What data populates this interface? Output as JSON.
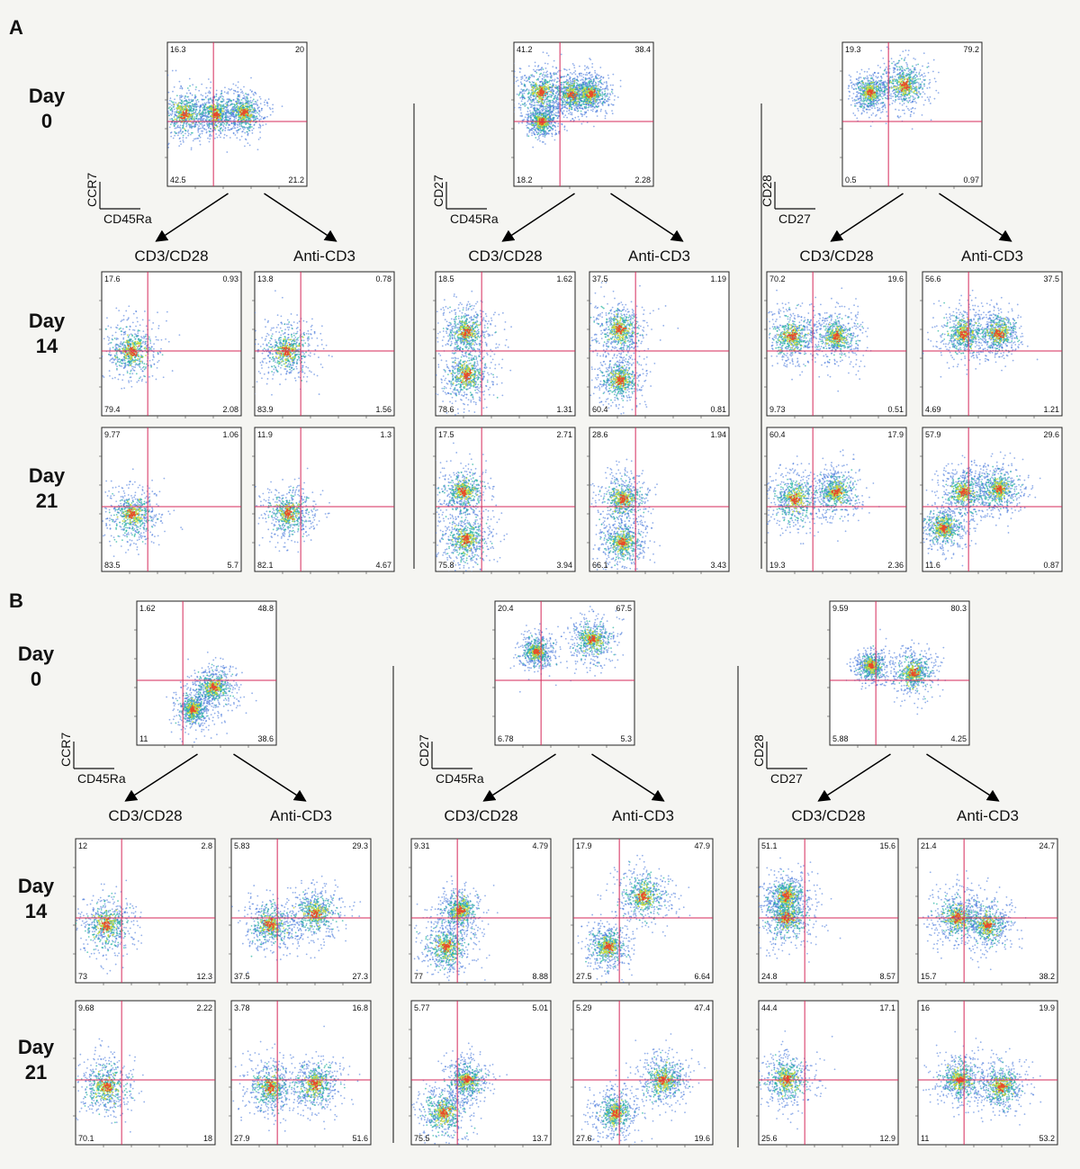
{
  "panels": [
    {
      "letter": "A",
      "day_labels": [
        [
          "Day",
          "0"
        ],
        [
          "Day",
          "14"
        ],
        [
          "Day",
          "21"
        ]
      ],
      "condition_labels": [
        "CD3/CD28",
        "Anti-CD3"
      ],
      "columns": [
        {
          "axes": {
            "y": "CCR7",
            "x": "CD45Ra"
          },
          "day0": {
            "q": [
              "16.3",
              "20",
              "42.5",
              "21.2"
            ],
            "pops": [
              [
                0.12,
                0.5,
                0.28
              ],
              [
                0.35,
                0.5,
                0.24
              ],
              [
                0.55,
                0.49,
                0.22
              ]
            ]
          },
          "plots": [
            {
              "q": [
                "17.6",
                "0.93",
                "79.4",
                "2.08"
              ],
              "pops": [
                [
                  0.22,
                  0.55,
                  0.32
                ]
              ]
            },
            {
              "q": [
                "13.8",
                "0.78",
                "83.9",
                "1.56"
              ],
              "pops": [
                [
                  0.23,
                  0.55,
                  0.32
                ]
              ]
            },
            {
              "q": [
                "9.77",
                "1.06",
                "83.5",
                "5.7"
              ],
              "pops": [
                [
                  0.22,
                  0.6,
                  0.32
                ]
              ]
            },
            {
              "q": [
                "11.9",
                "1.3",
                "82.1",
                "4.67"
              ],
              "pops": [
                [
                  0.24,
                  0.6,
                  0.3
                ]
              ]
            }
          ]
        },
        {
          "axes": {
            "y": "CD27",
            "x": "CD45Ra"
          },
          "day0": {
            "q": [
              "41.2",
              "38.4",
              "18.2",
              "2.28"
            ],
            "pops": [
              [
                0.2,
                0.35,
                0.28
              ],
              [
                0.42,
                0.36,
                0.24
              ],
              [
                0.55,
                0.36,
                0.22
              ],
              [
                0.2,
                0.55,
                0.18
              ]
            ]
          },
          "plots": [
            {
              "q": [
                "18.5",
                "1.62",
                "78.6",
                "1.31"
              ],
              "pops": [
                [
                  0.22,
                  0.42,
                  0.28
                ],
                [
                  0.22,
                  0.72,
                  0.3
                ]
              ]
            },
            {
              "q": [
                "37.5",
                "1.19",
                "60.4",
                "0.81"
              ],
              "pops": [
                [
                  0.22,
                  0.4,
                  0.3
                ],
                [
                  0.22,
                  0.75,
                  0.28
                ]
              ]
            },
            {
              "q": [
                "17.5",
                "2.71",
                "75.8",
                "3.94"
              ],
              "pops": [
                [
                  0.2,
                  0.45,
                  0.28
                ],
                [
                  0.22,
                  0.78,
                  0.3
                ]
              ]
            },
            {
              "q": [
                "28.6",
                "1.94",
                "66.1",
                "3.43"
              ],
              "pops": [
                [
                  0.24,
                  0.5,
                  0.28
                ],
                [
                  0.24,
                  0.8,
                  0.28
                ]
              ]
            }
          ]
        },
        {
          "axes": {
            "y": "CD28",
            "x": "CD27"
          },
          "day0": {
            "q": [
              "19.3",
              "79.2",
              "0.5",
              "0.97"
            ],
            "pops": [
              [
                0.45,
                0.3,
                0.28
              ],
              [
                0.2,
                0.35,
                0.22
              ]
            ]
          },
          "plots": [
            {
              "q": [
                "70.2",
                "19.6",
                "9.73",
                "0.51"
              ],
              "pops": [
                [
                  0.18,
                  0.45,
                  0.32
                ],
                [
                  0.5,
                  0.45,
                  0.28
                ]
              ]
            },
            {
              "q": [
                "56.6",
                "37.5",
                "4.69",
                "1.21"
              ],
              "pops": [
                [
                  0.3,
                  0.43,
                  0.3
                ],
                [
                  0.55,
                  0.43,
                  0.26
                ]
              ]
            },
            {
              "q": [
                "60.4",
                "17.9",
                "19.3",
                "2.36"
              ],
              "pops": [
                [
                  0.2,
                  0.5,
                  0.32
                ],
                [
                  0.5,
                  0.45,
                  0.28
                ]
              ]
            },
            {
              "q": [
                "57.9",
                "29.6",
                "11.6",
                "0.87"
              ],
              "pops": [
                [
                  0.3,
                  0.45,
                  0.3
                ],
                [
                  0.55,
                  0.43,
                  0.26
                ],
                [
                  0.15,
                  0.7,
                  0.25
                ]
              ]
            }
          ]
        }
      ]
    },
    {
      "letter": "B",
      "day_labels": [
        [
          "Day",
          "0"
        ],
        [
          "Day",
          "14"
        ],
        [
          "Day",
          "21"
        ]
      ],
      "condition_labels": [
        "CD3/CD28",
        "Anti-CD3"
      ],
      "columns": [
        {
          "axes": {
            "y": "CCR7",
            "x": "CD45Ra"
          },
          "day0": {
            "q": [
              "1.62",
              "48.8",
              "11",
              "38.6"
            ],
            "pops": [
              [
                0.55,
                0.6,
                0.25
              ],
              [
                0.4,
                0.75,
                0.2
              ]
            ]
          },
          "plots": [
            {
              "q": [
                "12",
                "2.8",
                "73",
                "12.3"
              ],
              "pops": [
                [
                  0.22,
                  0.6,
                  0.32
                ]
              ]
            },
            {
              "q": [
                "5.83",
                "29.3",
                "37.5",
                "27.3"
              ],
              "pops": [
                [
                  0.28,
                  0.6,
                  0.3
                ],
                [
                  0.6,
                  0.52,
                  0.3
                ]
              ]
            },
            {
              "q": [
                "9.68",
                "2.22",
                "70.1",
                "18"
              ],
              "pops": [
                [
                  0.22,
                  0.6,
                  0.32
                ]
              ]
            },
            {
              "q": [
                "3.78",
                "16.8",
                "27.9",
                "51.6"
              ],
              "pops": [
                [
                  0.28,
                  0.6,
                  0.3
                ],
                [
                  0.6,
                  0.58,
                  0.3
                ]
              ]
            }
          ]
        },
        {
          "axes": {
            "y": "CD27",
            "x": "CD45Ra"
          },
          "day0": {
            "q": [
              "20.4",
              "67.5",
              "6.78",
              "5.3"
            ],
            "pops": [
              [
                0.7,
                0.27,
                0.25
              ],
              [
                0.3,
                0.35,
                0.2
              ]
            ]
          },
          "plots": [
            {
              "q": [
                "9.31",
                "4.79",
                "77",
                "8.88"
              ],
              "pops": [
                [
                  0.25,
                  0.75,
                  0.3
                ],
                [
                  0.35,
                  0.5,
                  0.24
                ]
              ]
            },
            {
              "q": [
                "17.9",
                "47.9",
                "27.5",
                "6.64"
              ],
              "pops": [
                [
                  0.5,
                  0.4,
                  0.32
                ],
                [
                  0.25,
                  0.75,
                  0.26
                ]
              ]
            },
            {
              "q": [
                "5.77",
                "5.01",
                "75.5",
                "13.7"
              ],
              "pops": [
                [
                  0.23,
                  0.78,
                  0.3
                ],
                [
                  0.4,
                  0.55,
                  0.24
                ]
              ]
            },
            {
              "q": [
                "5.29",
                "47.4",
                "27.6",
                "19.6"
              ],
              "pops": [
                [
                  0.65,
                  0.55,
                  0.3
                ],
                [
                  0.3,
                  0.78,
                  0.26
                ]
              ]
            }
          ]
        },
        {
          "axes": {
            "y": "CD28",
            "x": "CD27"
          },
          "day0": {
            "q": [
              "9.59",
              "80.3",
              "5.88",
              "4.25"
            ],
            "pops": [
              [
                0.6,
                0.5,
                0.26
              ],
              [
                0.3,
                0.45,
                0.18
              ]
            ]
          },
          "plots": [
            {
              "q": [
                "51.1",
                "15.6",
                "24.8",
                "8.57"
              ],
              "pops": [
                [
                  0.2,
                  0.55,
                  0.3
                ],
                [
                  0.2,
                  0.4,
                  0.26
                ]
              ]
            },
            {
              "q": [
                "21.4",
                "24.7",
                "15.7",
                "38.2"
              ],
              "pops": [
                [
                  0.28,
                  0.55,
                  0.3
                ],
                [
                  0.5,
                  0.6,
                  0.28
                ]
              ]
            },
            {
              "q": [
                "44.4",
                "17.1",
                "25.6",
                "12.9"
              ],
              "pops": [
                [
                  0.2,
                  0.55,
                  0.3
                ]
              ]
            },
            {
              "q": [
                "16",
                "19.9",
                "11",
                "53.2"
              ],
              "pops": [
                [
                  0.3,
                  0.55,
                  0.28
                ],
                [
                  0.6,
                  0.6,
                  0.28
                ]
              ]
            }
          ]
        }
      ]
    }
  ]
}
